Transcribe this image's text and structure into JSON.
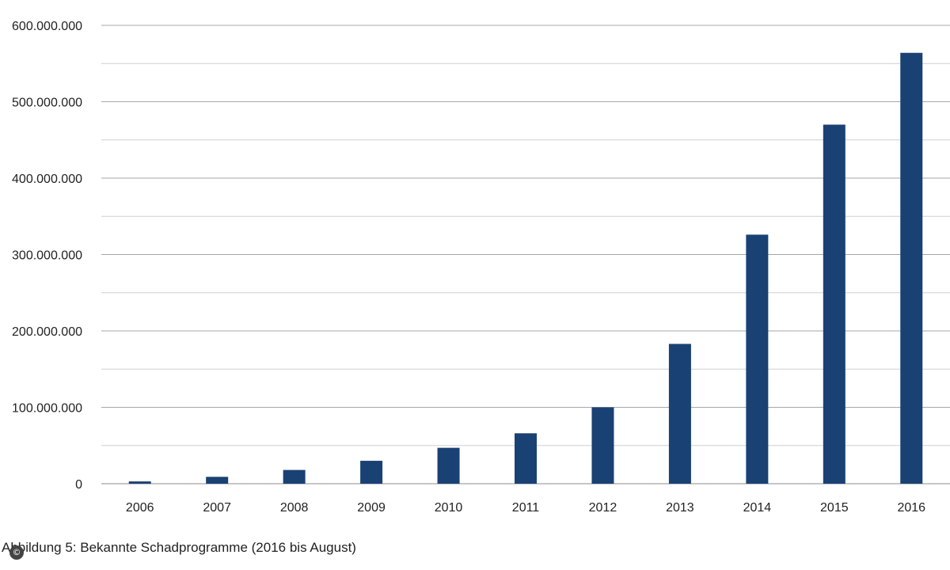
{
  "chart_data": {
    "type": "bar",
    "categories": [
      "2006",
      "2007",
      "2008",
      "2009",
      "2010",
      "2011",
      "2012",
      "2013",
      "2014",
      "2015",
      "2016"
    ],
    "values": [
      3000000,
      9000000,
      18000000,
      30000000,
      47000000,
      66000000,
      100000000,
      183000000,
      326000000,
      470000000,
      564000000
    ],
    "ylim": [
      0,
      600000000
    ],
    "yticks": [
      0,
      100000000,
      200000000,
      300000000,
      400000000,
      500000000,
      600000000
    ],
    "ytick_labels": [
      "0",
      "100.000.000",
      "200.000.000",
      "300.000.000",
      "400.000.000",
      "500.000.000",
      "600.000.000"
    ],
    "grid": true,
    "bar_color": "#1a4173"
  },
  "caption": "Abbildung 5: Bekannte Schadprogramme (2016 bis August)",
  "icons": {
    "copyright": "copyright-icon"
  }
}
